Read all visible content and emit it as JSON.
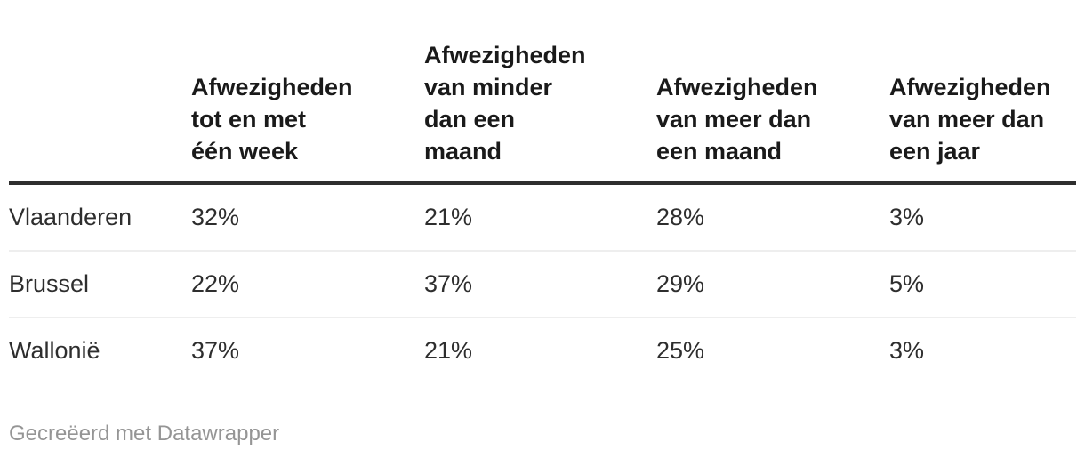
{
  "table": {
    "columns": [
      "Afwezigheden\ntot en met\néén week",
      "Afwezigheden\nvan minder\ndan een\nmaand",
      "Afwezigheden\nvan meer dan\neen maand",
      "Afwezigheden\nvan meer dan\neen jaar"
    ],
    "rows": [
      {
        "label": "Vlaanderen",
        "values": [
          "32%",
          "21%",
          "28%",
          "3%"
        ]
      },
      {
        "label": "Brussel",
        "values": [
          "22%",
          "37%",
          "29%",
          "5%"
        ]
      },
      {
        "label": "Wallonië",
        "values": [
          "37%",
          "21%",
          "25%",
          "3%"
        ]
      }
    ]
  },
  "footer": {
    "attribution": "Gecreëerd met Datawrapper"
  },
  "colors": {
    "background": "#ffffff",
    "header_text": "#1a1a1a",
    "body_text": "#2e2e2e",
    "header_rule": "#2e2e2e",
    "row_divider": "#eeeeee",
    "attribution_text": "#959595"
  },
  "chart_data": {
    "type": "table",
    "categories": [
      "Afwezigheden tot en met één week",
      "Afwezigheden van minder dan een maand",
      "Afwezigheden van meer dan een maand",
      "Afwezigheden van meer dan een jaar"
    ],
    "series": [
      {
        "name": "Vlaanderen",
        "values": [
          32,
          21,
          28,
          3
        ]
      },
      {
        "name": "Brussel",
        "values": [
          22,
          37,
          29,
          5
        ]
      },
      {
        "name": "Wallonië",
        "values": [
          37,
          21,
          25,
          3
        ]
      }
    ],
    "value_unit": "%",
    "title": "",
    "legend_position": "none",
    "grid": false
  }
}
